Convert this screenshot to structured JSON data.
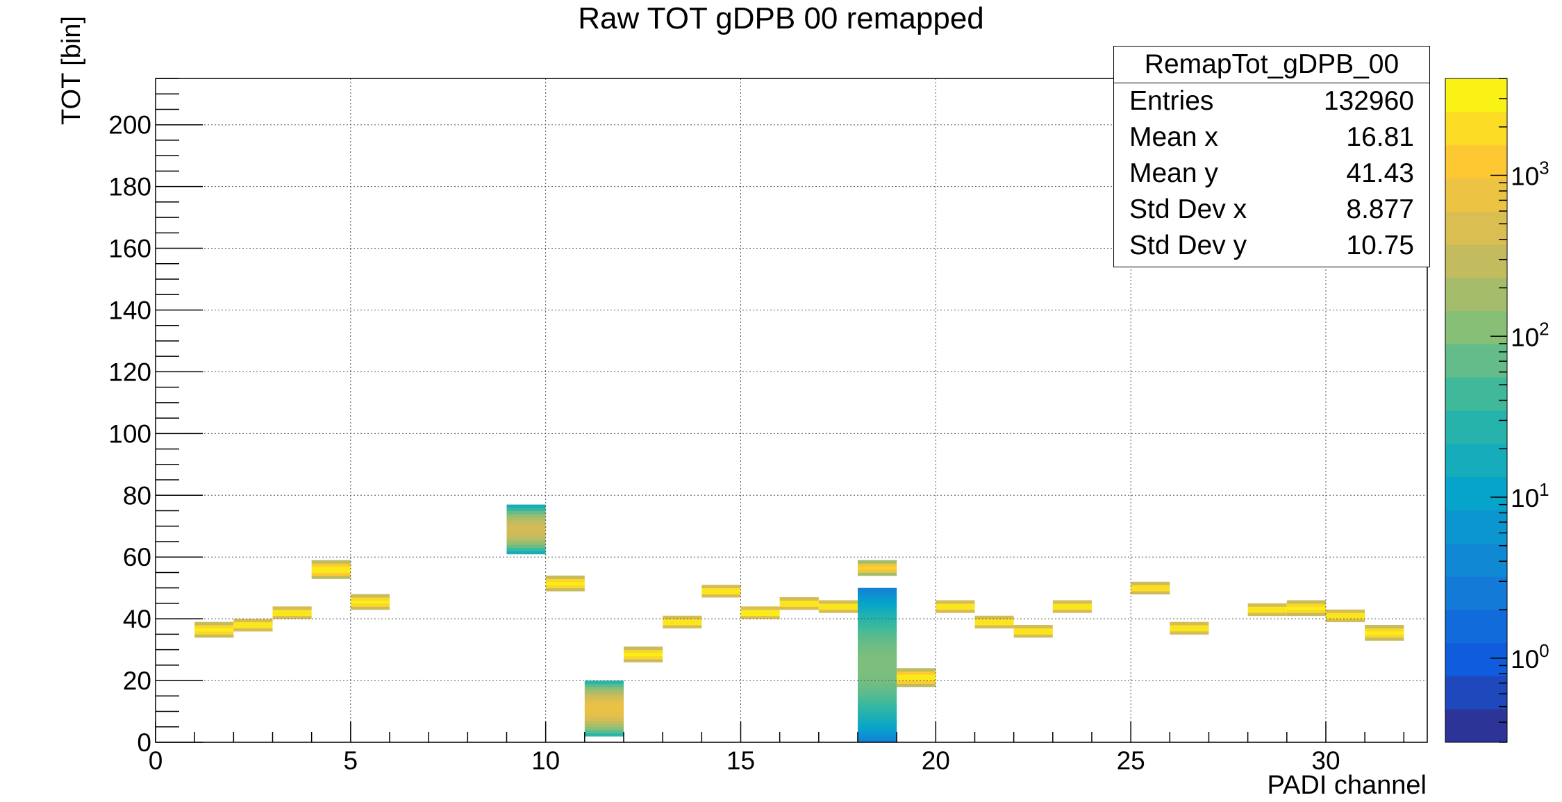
{
  "chart_data": {
    "type": "heatmap",
    "title": "Raw TOT gDPB 00 remapped",
    "xlabel": "PADI channel",
    "ylabel": "TOT [bin]",
    "xlim": [
      0,
      32.6
    ],
    "ylim": [
      0,
      215
    ],
    "x_ticks": [
      "0",
      "5",
      "10",
      "15",
      "20",
      "25",
      "30"
    ],
    "y_ticks": [
      "0",
      "20",
      "40",
      "60",
      "80",
      "100",
      "120",
      "140",
      "160",
      "180",
      "200"
    ],
    "z_scale": "log",
    "z_range": [
      0.3,
      4000
    ],
    "z_ticks": [
      {
        "base": "10",
        "exp": "0",
        "value": 1
      },
      {
        "base": "10",
        "exp": "1",
        "value": 10
      },
      {
        "base": "10",
        "exp": "2",
        "value": 100
      },
      {
        "base": "10",
        "exp": "3",
        "value": 1000
      }
    ],
    "grid": true,
    "stats": {
      "name": "RemapTot_gDPB_00",
      "rows": [
        {
          "label": "Entries",
          "value": "132960"
        },
        {
          "label": "Mean x",
          "value": "16.81"
        },
        {
          "label": "Mean y",
          "value": "41.43"
        },
        {
          "label": "Std Dev x",
          "value": "8.877"
        },
        {
          "label": "Std Dev y",
          "value": "10.75"
        }
      ]
    },
    "clusters": [
      {
        "channel": 1,
        "ymin": 34,
        "ymax": 39,
        "peak": 3000
      },
      {
        "channel": 2,
        "ymin": 36,
        "ymax": 40,
        "peak": 3000
      },
      {
        "channel": 3,
        "ymin": 40,
        "ymax": 44,
        "peak": 3000
      },
      {
        "channel": 4,
        "ymin": 53,
        "ymax": 59,
        "peak": 3000
      },
      {
        "channel": 5,
        "ymin": 43,
        "ymax": 48,
        "peak": 3000
      },
      {
        "channel": 9,
        "ymin": 61,
        "ymax": 77,
        "peak": 400
      },
      {
        "channel": 10,
        "ymin": 49,
        "ymax": 54,
        "peak": 3000
      },
      {
        "channel": 11,
        "ymin": 2,
        "ymax": 20,
        "peak": 700
      },
      {
        "channel": 12,
        "ymin": 26,
        "ymax": 31,
        "peak": 3000
      },
      {
        "channel": 13,
        "ymin": 37,
        "ymax": 41,
        "peak": 3000
      },
      {
        "channel": 14,
        "ymin": 47,
        "ymax": 51,
        "peak": 3000
      },
      {
        "channel": 15,
        "ymin": 40,
        "ymax": 44,
        "peak": 3500
      },
      {
        "channel": 16,
        "ymin": 43,
        "ymax": 47,
        "peak": 3000
      },
      {
        "channel": 17,
        "ymin": 42,
        "ymax": 46,
        "peak": 3000
      },
      {
        "channel": 18,
        "ymin": 54,
        "ymax": 59,
        "peak": 1500
      },
      {
        "channel": 18,
        "ymin": 0,
        "ymax": 50,
        "peak": 100
      },
      {
        "channel": 19,
        "ymin": 18,
        "ymax": 24,
        "peak": 3000
      },
      {
        "channel": 20,
        "ymin": 42,
        "ymax": 46,
        "peak": 3000
      },
      {
        "channel": 21,
        "ymin": 37,
        "ymax": 41,
        "peak": 3000
      },
      {
        "channel": 22,
        "ymin": 34,
        "ymax": 38,
        "peak": 3000
      },
      {
        "channel": 23,
        "ymin": 42,
        "ymax": 46,
        "peak": 3000
      },
      {
        "channel": 25,
        "ymin": 48,
        "ymax": 52,
        "peak": 2500
      },
      {
        "channel": 26,
        "ymin": 35,
        "ymax": 39,
        "peak": 3000
      },
      {
        "channel": 28,
        "ymin": 41,
        "ymax": 45,
        "peak": 3000
      },
      {
        "channel": 29,
        "ymin": 41,
        "ymax": 46,
        "peak": 3000
      },
      {
        "channel": 30,
        "ymin": 39,
        "ymax": 43,
        "peak": 3000
      },
      {
        "channel": 31,
        "ymin": 33,
        "ymax": 38,
        "peak": 3000
      }
    ]
  }
}
